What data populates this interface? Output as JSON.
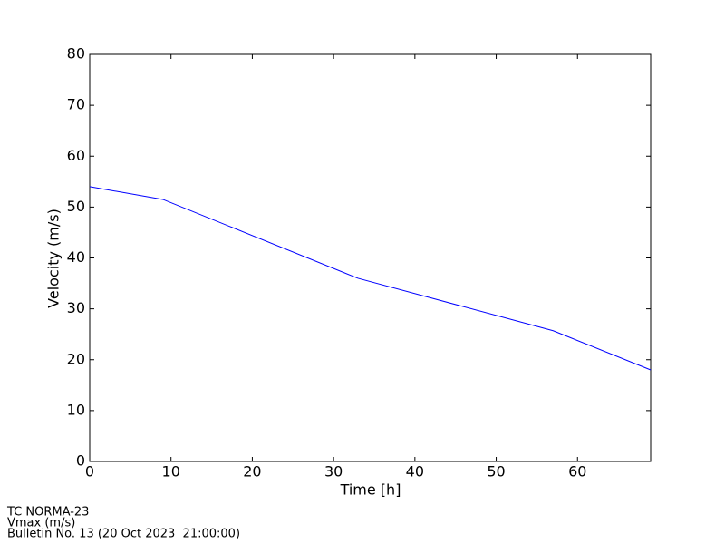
{
  "chart_data": {
    "type": "line",
    "xlabel": "Time [h]",
    "ylabel": "Velocity (m/s)",
    "x": [
      0,
      9,
      33,
      57,
      69
    ],
    "series": [
      {
        "name": "Vmax",
        "color": "#0000ff",
        "values": [
          54,
          51.5,
          36,
          25.7,
          18
        ]
      }
    ],
    "xlim": [
      0,
      69
    ],
    "xticks": [
      0,
      10,
      20,
      30,
      40,
      50,
      60
    ],
    "ylim": [
      0,
      80
    ],
    "yticks": [
      0,
      10,
      20,
      30,
      40,
      50,
      60,
      70,
      80
    ],
    "grid": false,
    "legend": false,
    "annotations": [
      "TC NORMA-23",
      "Vmax (m/s)",
      "Bulletin No. 13 (20 Oct 2023  21:00:00)"
    ]
  }
}
